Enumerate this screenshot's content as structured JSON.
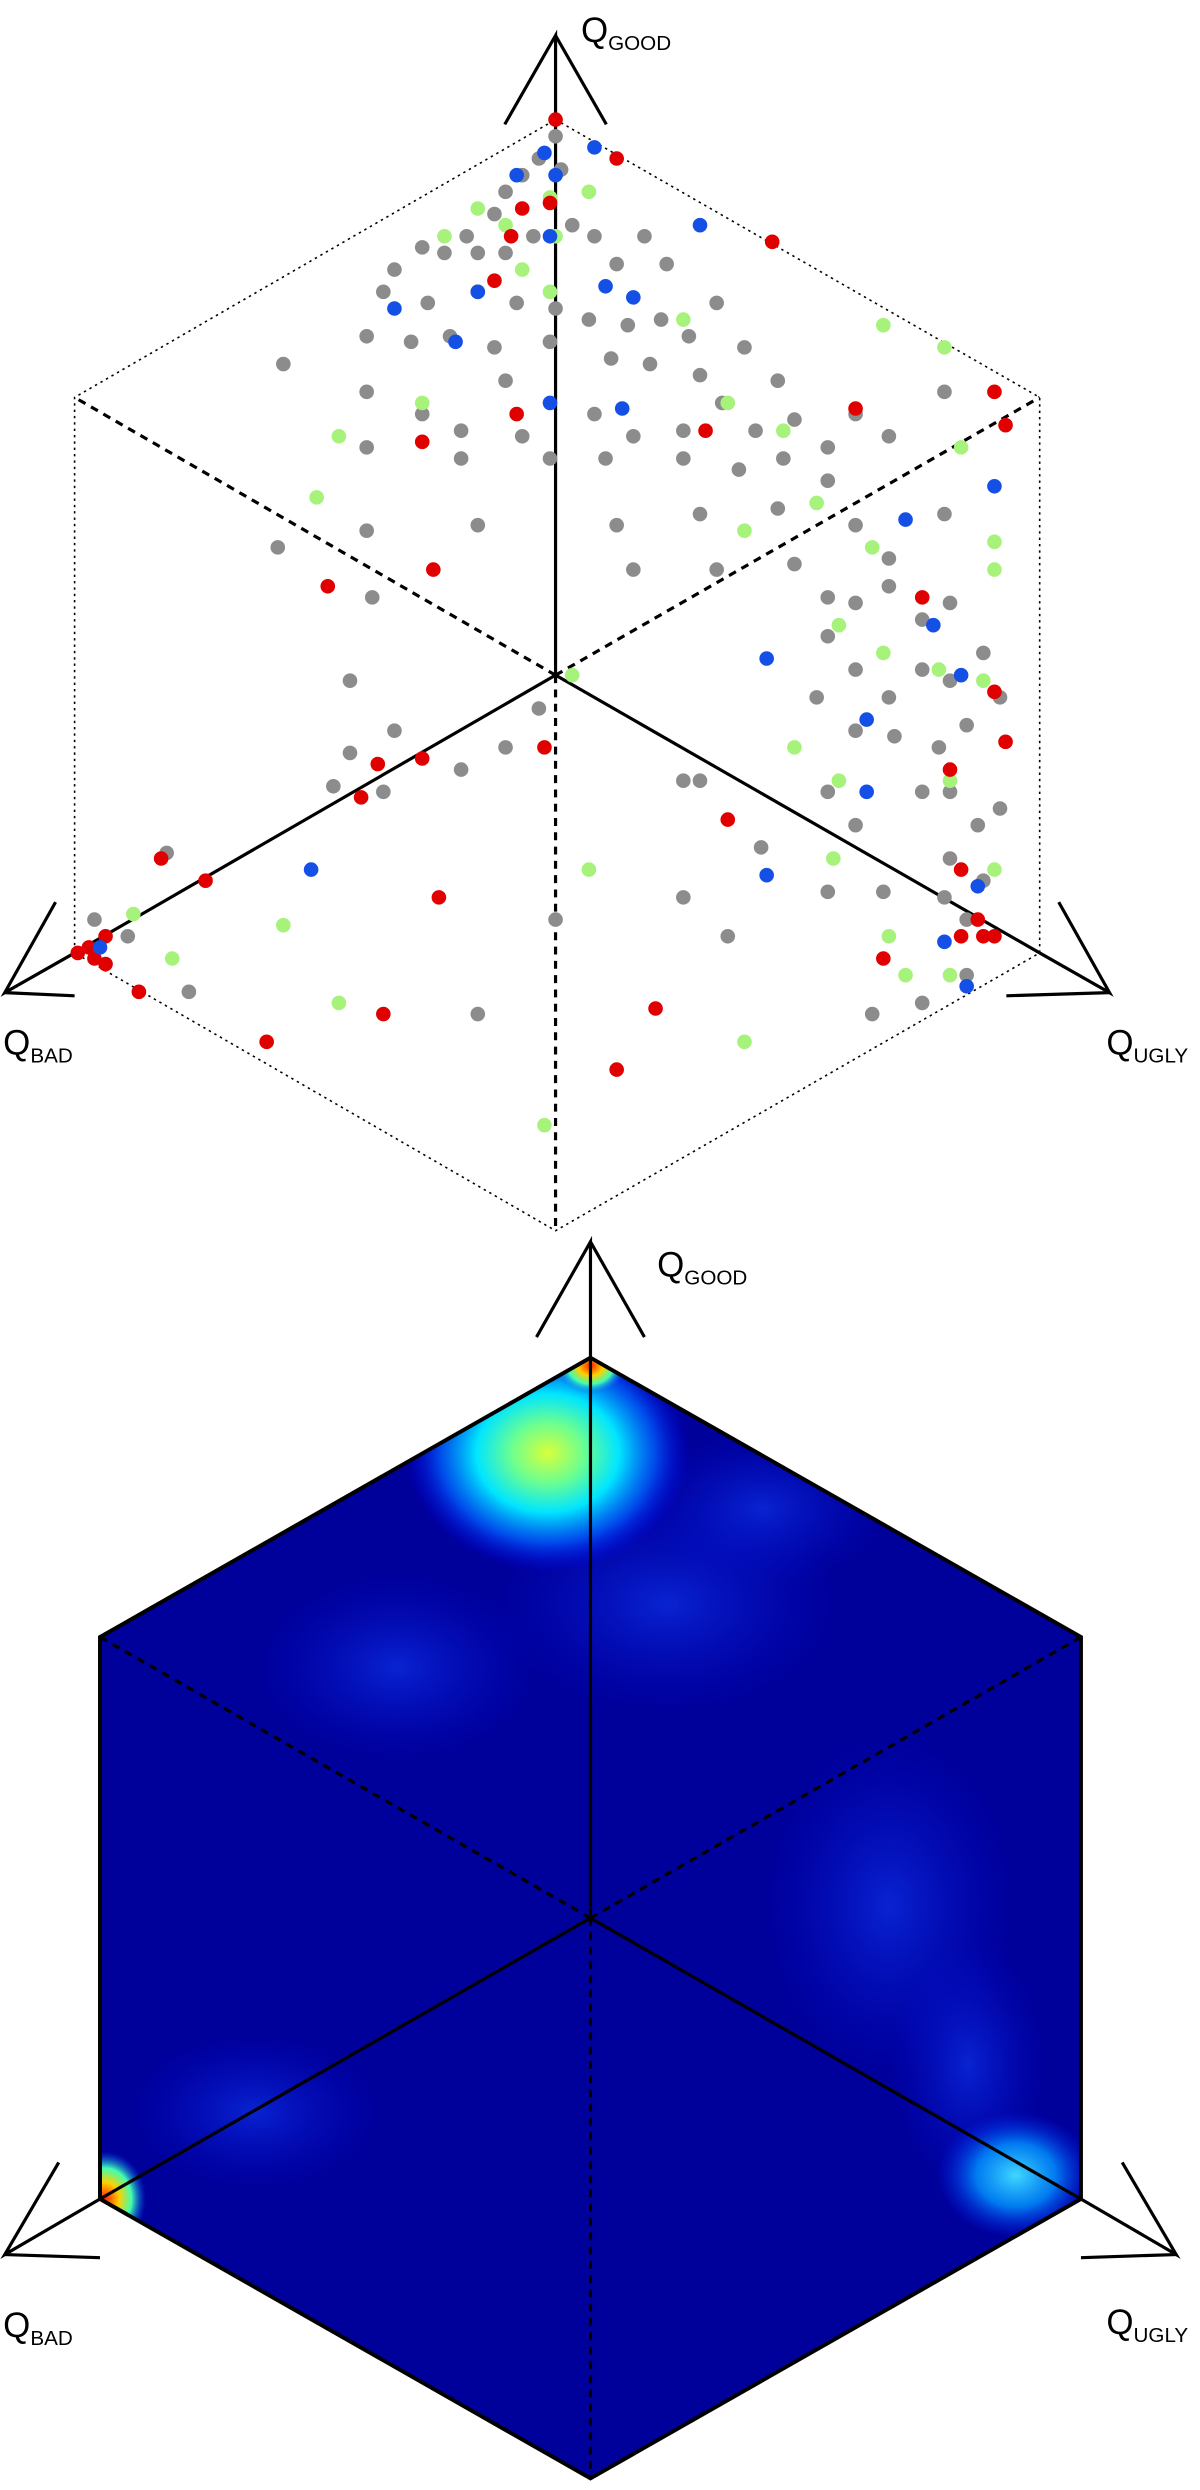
{
  "panels": [
    {
      "labels": {
        "good": {
          "main": "Q",
          "sub": "GOOD"
        },
        "bad": {
          "main": "Q",
          "sub": "BAD"
        },
        "ugly": {
          "main": "Q",
          "sub": "UGLY"
        }
      }
    },
    {
      "labels": {
        "good": {
          "main": "Q",
          "sub": "GOOD"
        },
        "bad": {
          "main": "Q",
          "sub": "BAD"
        },
        "ugly": {
          "main": "Q",
          "sub": "UGLY"
        }
      }
    }
  ],
  "chart_data": {
    "type": "scatter",
    "xlim": [
      -1,
      1
    ],
    "ylim": [
      -1,
      1
    ],
    "series": [
      {
        "color": "#8c8c8c",
        "x": [
          0,
          -0.03,
          -0.06,
          0.01,
          -0.09,
          -0.11,
          -0.16,
          -0.2,
          -0.24,
          -0.14,
          -0.09,
          -0.04,
          0.03,
          0.07,
          0.11,
          0.16,
          0.2,
          -0.29,
          -0.31,
          -0.23,
          -0.14,
          -0.07,
          0,
          0.06,
          0.13,
          0.19,
          0.24,
          0.29,
          -0.34,
          -0.26,
          -0.19,
          -0.11,
          -0.01,
          0.1,
          0.17,
          0.26,
          0.34,
          0.4,
          -0.49,
          -0.34,
          -0.24,
          -0.17,
          -0.09,
          -0.06,
          0.07,
          0.14,
          0.23,
          0.3,
          0.36,
          0.43,
          0.49,
          0.54,
          0.6,
          0.7,
          -0.34,
          -0.17,
          -0.01,
          0.09,
          0.23,
          0.33,
          0.41,
          0.49,
          -0.5,
          -0.34,
          -0.14,
          0.11,
          0.26,
          0.4,
          0.54,
          0.6,
          0.7,
          0.14,
          0.29,
          0.43,
          -0.33,
          0.49,
          0.54,
          0.6,
          0.66,
          0.71,
          0.49,
          0.54,
          0.6,
          0.66,
          0.71,
          0.77,
          0.47,
          0.54,
          0.61,
          0.69,
          0.74,
          0.8,
          0.71,
          0.76,
          0.8,
          0.66,
          0.49,
          0.54,
          0.71,
          0.77,
          0.7,
          0.74,
          0.59,
          0.49,
          0.37,
          0.26,
          0.23,
          0.31,
          0.57,
          0.66,
          0.74,
          -0.37,
          -0.29,
          -0.37,
          -0.4,
          -0.31,
          -0.17,
          -0.09,
          -0.03,
          -0.7,
          -0.77,
          -0.83,
          -0.66,
          0,
          -0.14,
          0.23
        ],
        "y": [
          0.97,
          0.93,
          0.9,
          0.91,
          0.87,
          0.83,
          0.79,
          0.76,
          0.77,
          0.76,
          0.76,
          0.79,
          0.81,
          0.79,
          0.74,
          0.79,
          0.74,
          0.73,
          0.69,
          0.67,
          0.69,
          0.67,
          0.66,
          0.64,
          0.63,
          0.64,
          0.61,
          0.67,
          0.61,
          0.6,
          0.61,
          0.59,
          0.6,
          0.57,
          0.56,
          0.54,
          0.59,
          0.53,
          0.56,
          0.51,
          0.47,
          0.44,
          0.53,
          0.43,
          0.47,
          0.43,
          0.44,
          0.49,
          0.44,
          0.46,
          0.41,
          0.47,
          0.43,
          0.51,
          0.41,
          0.39,
          0.39,
          0.39,
          0.39,
          0.37,
          0.39,
          0.35,
          0.23,
          0.26,
          0.27,
          0.27,
          0.29,
          0.3,
          0.27,
          0.21,
          0.29,
          0.19,
          0.19,
          0.2,
          0.14,
          0.14,
          0.13,
          0.16,
          0.1,
          0.13,
          0.07,
          0.01,
          -0.04,
          0.01,
          -0.01,
          0.04,
          -0.04,
          -0.1,
          -0.11,
          -0.13,
          -0.09,
          -0.04,
          -0.21,
          -0.27,
          -0.24,
          -0.21,
          -0.21,
          -0.27,
          -0.33,
          -0.37,
          -0.4,
          -0.44,
          -0.39,
          -0.39,
          -0.31,
          -0.19,
          -0.4,
          -0.47,
          -0.61,
          -0.59,
          -0.54,
          -0.01,
          -0.1,
          -0.14,
          -0.2,
          -0.21,
          -0.17,
          -0.13,
          -0.06,
          -0.32,
          -0.47,
          -0.44,
          -0.57,
          -0.44,
          -0.61,
          -0.19
        ]
      },
      {
        "color": "#a6f27a",
        "x": [
          -0.14,
          -0.09,
          -0.01,
          0.06,
          -0.06,
          -0.01,
          -0.2,
          0,
          0.23,
          0.59,
          0.7,
          -0.39,
          -0.24,
          0.31,
          0.41,
          -0.43,
          0.34,
          0.47,
          0.73,
          0.57,
          0.79,
          0.79,
          0.51,
          0.59,
          0.69,
          0.77,
          0.03,
          0.43,
          0.51,
          0.71,
          0.5,
          0.06,
          -0.49,
          -0.69,
          -0.76,
          -0.39,
          0.34,
          -0.02,
          0.63,
          0.71,
          0.6,
          0.79
        ],
        "y": [
          0.84,
          0.81,
          0.86,
          0.87,
          0.73,
          0.69,
          0.79,
          0.79,
          0.64,
          0.63,
          0.59,
          0.43,
          0.49,
          0.49,
          0.44,
          0.32,
          0.26,
          0.31,
          0.41,
          0.23,
          0.24,
          0.19,
          0.09,
          0.04,
          0.01,
          -0.01,
          0,
          -0.13,
          -0.19,
          -0.19,
          -0.33,
          -0.35,
          -0.45,
          -0.51,
          -0.43,
          -0.59,
          -0.66,
          -0.81,
          -0.54,
          -0.54,
          -0.47,
          -0.35
        ]
      },
      {
        "color": "#e00000",
        "x": [
          0,
          0.11,
          -0.06,
          -0.01,
          0.39,
          -0.11,
          -0.08,
          -0.07,
          -0.24,
          0.27,
          0.54,
          0.79,
          0.81,
          -0.22,
          -0.41,
          0.66,
          0.79,
          0.81,
          0.71,
          -0.02,
          -0.24,
          -0.32,
          -0.35,
          0.31,
          -0.71,
          -0.63,
          -0.21,
          -0.86,
          -0.84,
          -0.83,
          -0.81,
          -0.81,
          -0.75,
          -0.52,
          -0.31,
          0.18,
          0.11,
          0.59,
          0.73,
          0.76,
          0.77,
          0.73,
          0.79
        ],
        "y": [
          1,
          0.93,
          0.84,
          0.85,
          0.78,
          0.71,
          0.79,
          0.47,
          0.42,
          0.44,
          0.48,
          0.51,
          0.45,
          0.19,
          0.16,
          0.14,
          -0.03,
          -0.12,
          -0.17,
          -0.13,
          -0.15,
          -0.16,
          -0.22,
          -0.26,
          -0.33,
          -0.37,
          -0.4,
          -0.5,
          -0.49,
          -0.51,
          -0.47,
          -0.52,
          -0.57,
          -0.66,
          -0.61,
          -0.6,
          -0.71,
          -0.51,
          -0.35,
          -0.44,
          -0.47,
          -0.47,
          -0.47
        ]
      },
      {
        "color": "#1450e6",
        "x": [
          -0.02,
          0.07,
          -0.07,
          0,
          -0.01,
          -0.14,
          0.26,
          0.14,
          -0.29,
          -0.18,
          0.09,
          0.12,
          -0.01,
          0.79,
          0.63,
          0.68,
          0.38,
          0.73,
          0.56,
          0.56,
          0.38,
          -0.44,
          0.76,
          0.7,
          0.74,
          -0.82
        ],
        "y": [
          0.94,
          0.95,
          0.9,
          0.9,
          0.79,
          0.69,
          0.81,
          0.68,
          0.66,
          0.6,
          0.7,
          0.48,
          0.49,
          0.34,
          0.28,
          0.09,
          0.03,
          0,
          -0.08,
          -0.21,
          -0.36,
          -0.35,
          -0.38,
          -0.48,
          -0.56,
          -0.49
        ]
      }
    ]
  }
}
